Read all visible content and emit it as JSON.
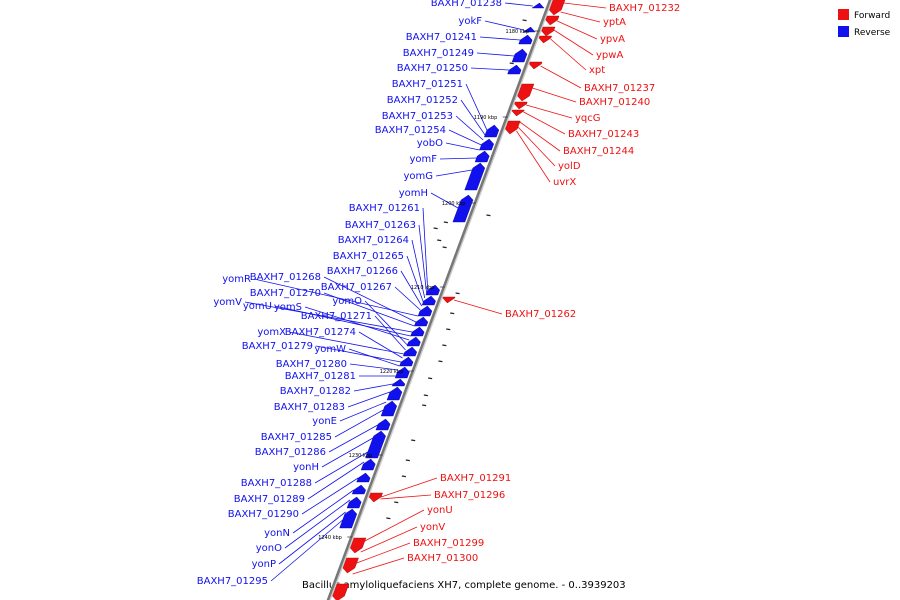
{
  "caption": "Bacillus amyloliquefaciens XH7, complete genome. - 0..3939203",
  "colors": {
    "forward": "#ee1111",
    "reverse": "#1111ee",
    "backbone": "#777777"
  },
  "legend": [
    {
      "label": "Forward",
      "color": "#ee1111"
    },
    {
      "label": "Reverse",
      "color": "#1111ee"
    }
  ],
  "ticks": [
    "1180 kbp",
    "1190 kbp",
    "1200 kbp",
    "1210 kbp",
    "1220 kbp",
    "1230 kbp",
    "1240 kbp"
  ],
  "forward_labels": [
    "BAXH7_01232",
    "yptA",
    "ypvA",
    "ypwA",
    "xpt",
    "BAXH7_01237",
    "BAXH7_01240",
    "yqcG",
    "BAXH7_01243",
    "BAXH7_01244",
    "yolD",
    "uvrX",
    "BAXH7_01262",
    "BAXH7_01291",
    "BAXH7_01296",
    "yonU",
    "yonV",
    "BAXH7_01299",
    "BAXH7_01300"
  ],
  "reverse_labels": [
    "BAXH7_01238",
    "yokF",
    "BAXH7_01241",
    "BAXH7_01249",
    "BAXH7_01250",
    "BAXH7_01251",
    "BAXH7_01252",
    "BAXH7_01253",
    "BAXH7_01254",
    "yobO",
    "yomF",
    "yomG",
    "yomH",
    "BAXH7_01261",
    "BAXH7_01263",
    "BAXH7_01264",
    "BAXH7_01265",
    "BAXH7_01266",
    "BAXH7_01267",
    "yomR",
    "BAXH7_01268",
    "BAXH7_01270",
    "yomV",
    "yomU",
    "yomS",
    "yomO",
    "BAXH7_01271",
    "yomX",
    "BAXH7_01274",
    "BAXH7_01279",
    "yomW",
    "BAXH7_01280",
    "BAXH7_01281",
    "BAXH7_01282",
    "BAXH7_01283",
    "yonE",
    "BAXH7_01285",
    "BAXH7_01286",
    "yonH",
    "BAXH7_01288",
    "BAXH7_01289",
    "BAXH7_01290",
    "yonN",
    "yonO",
    "yonP",
    "BAXH7_01295"
  ]
}
